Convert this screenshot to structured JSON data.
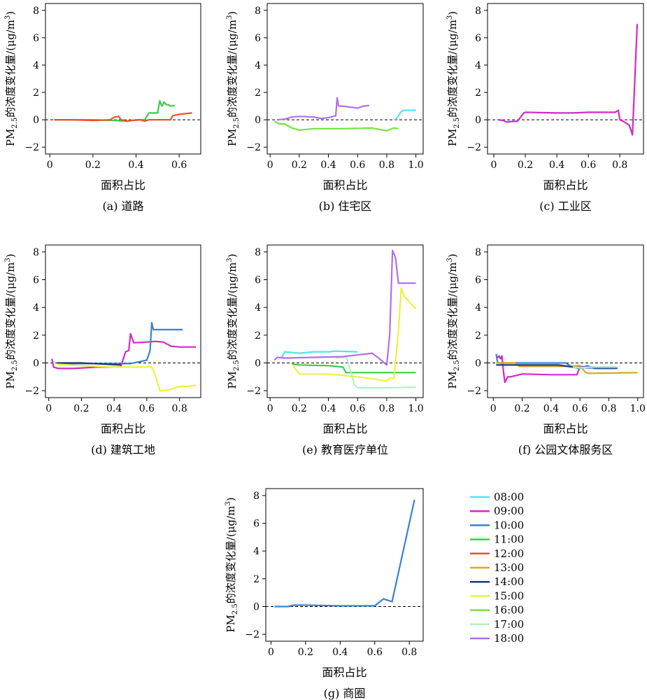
{
  "chart_data": [
    {
      "type": "line",
      "caption": "(a) 道路",
      "xlabel": "面积占比",
      "ylabel": "PM2.5的浓度变化量/(μg/m3)",
      "xlim": [
        -0.02,
        0.7
      ],
      "ylim": [
        -2.5,
        8.5
      ],
      "xticks": [
        "0",
        "0.2",
        "0.4",
        "0.6"
      ],
      "yticks": [
        "−2",
        "0",
        "2",
        "4",
        "6",
        "8"
      ],
      "reference_line": 0,
      "series": [
        {
          "name": "11:00",
          "x": [
            0.02,
            0.2,
            0.3,
            0.36,
            0.38,
            0.4,
            0.44,
            0.46,
            0.48,
            0.5,
            0.51,
            0.52,
            0.53,
            0.54,
            0.55,
            0.56,
            0.58
          ],
          "y": [
            0.0,
            0.0,
            -0.05,
            -0.1,
            -0.05,
            0.0,
            0.0,
            0.5,
            0.5,
            0.5,
            1.4,
            1.0,
            1.3,
            1.1,
            1.1,
            1.0,
            1.05
          ]
        },
        {
          "name": "12:00",
          "x": [
            0.02,
            0.1,
            0.2,
            0.28,
            0.3,
            0.32,
            0.33,
            0.36,
            0.38,
            0.42,
            0.44,
            0.46,
            0.5,
            0.56,
            0.57,
            0.6,
            0.66
          ],
          "y": [
            0.0,
            0.0,
            -0.05,
            0.0,
            0.2,
            0.25,
            0.0,
            -0.1,
            -0.05,
            0.0,
            -0.1,
            0.0,
            0.0,
            0.0,
            0.3,
            0.4,
            0.5
          ]
        }
      ]
    },
    {
      "type": "line",
      "caption": "(b) 住宅区",
      "xlabel": "面积占比",
      "ylabel": "PM2.5的浓度变化量/(μg/m3)",
      "xlim": [
        -0.02,
        1.05
      ],
      "ylim": [
        -2.5,
        8.5
      ],
      "xticks": [
        "0",
        "0.2",
        "0.4",
        "0.6",
        "0.8",
        "1.0"
      ],
      "yticks": [
        "−2",
        "0",
        "2",
        "4",
        "6",
        "8"
      ],
      "reference_line": 0,
      "series": [
        {
          "name": "08:00",
          "x": [
            0.86,
            0.9,
            0.92,
            1.0
          ],
          "y": [
            0.0,
            0.6,
            0.7,
            0.7
          ]
        },
        {
          "name": "16:00",
          "x": [
            0.03,
            0.06,
            0.1,
            0.15,
            0.2,
            0.25,
            0.3,
            0.5,
            0.7,
            0.8,
            0.85,
            0.88
          ],
          "y": [
            -0.1,
            -0.3,
            -0.3,
            -0.6,
            -0.75,
            -0.7,
            -0.65,
            -0.65,
            -0.6,
            -0.8,
            -0.6,
            -0.65
          ]
        },
        {
          "name": "18:00",
          "x": [
            0.05,
            0.1,
            0.15,
            0.2,
            0.3,
            0.35,
            0.4,
            0.45,
            0.46,
            0.47,
            0.5,
            0.6,
            0.64,
            0.68
          ],
          "y": [
            0.0,
            0.05,
            0.2,
            0.25,
            0.2,
            0.1,
            0.15,
            0.3,
            1.6,
            1.0,
            1.0,
            0.85,
            1.0,
            1.05
          ]
        }
      ]
    },
    {
      "type": "line",
      "caption": "(c) 工业区",
      "xlabel": "面积占比",
      "ylabel": "PM2.5的浓度变化量/(μg/m3)",
      "xlim": [
        -0.04,
        0.95
      ],
      "ylim": [
        -2.5,
        8.5
      ],
      "xticks": [
        "0",
        "0.2",
        "0.4",
        "0.6",
        "0.8"
      ],
      "yticks": [
        "−2",
        "0",
        "2",
        "4",
        "6",
        "8"
      ],
      "reference_line": 0,
      "series": [
        {
          "name": "09:00",
          "x": [
            0.03,
            0.06,
            0.08,
            0.15,
            0.19,
            0.2,
            0.4,
            0.5,
            0.6,
            0.77,
            0.79,
            0.8,
            0.82,
            0.86,
            0.88,
            0.91
          ],
          "y": [
            0.0,
            -0.05,
            -0.15,
            -0.1,
            0.5,
            0.55,
            0.5,
            0.5,
            0.55,
            0.55,
            0.7,
            0.0,
            -0.1,
            -0.4,
            -1.1,
            7.0
          ]
        }
      ]
    },
    {
      "type": "line",
      "caption": "(d) 建筑工地",
      "xlabel": "面积占比",
      "ylabel": "PM2.5的浓度变化量/(μg/m3)",
      "xlim": [
        -0.02,
        0.93
      ],
      "ylim": [
        -2.5,
        8.5
      ],
      "xticks": [
        "0",
        "0.2",
        "0.4",
        "0.6",
        "0.8"
      ],
      "yticks": [
        "−2",
        "0",
        "2",
        "4",
        "6",
        "8"
      ],
      "reference_line": 0,
      "series": [
        {
          "name": "09:00",
          "x": [
            0.02,
            0.03,
            0.06,
            0.15,
            0.3,
            0.44,
            0.47,
            0.49,
            0.5,
            0.52,
            0.6,
            0.65,
            0.7,
            0.75,
            0.8,
            0.9
          ],
          "y": [
            0.3,
            -0.3,
            -0.4,
            -0.4,
            -0.3,
            -0.3,
            0.8,
            0.9,
            2.1,
            1.45,
            1.5,
            1.55,
            1.5,
            1.2,
            1.15,
            1.15
          ]
        },
        {
          "name": "10:00",
          "x": [
            0.05,
            0.2,
            0.4,
            0.5,
            0.6,
            0.62,
            0.63,
            0.64,
            0.65,
            0.7,
            0.82
          ],
          "y": [
            -0.05,
            -0.05,
            -0.05,
            -0.05,
            0.2,
            0.9,
            2.9,
            2.4,
            2.4,
            2.4,
            2.4
          ]
        },
        {
          "name": "14:00",
          "x": [
            0.05,
            0.2,
            0.44
          ],
          "y": [
            0.0,
            0.0,
            -0.15
          ]
        },
        {
          "name": "15:00",
          "x": [
            0.05,
            0.2,
            0.4,
            0.6,
            0.62,
            0.64,
            0.66,
            0.68,
            0.7,
            0.75,
            0.8,
            0.85,
            0.9
          ],
          "y": [
            -0.1,
            -0.2,
            -0.3,
            -0.3,
            -0.2,
            -0.5,
            -1.2,
            -2.0,
            -2.0,
            -1.9,
            -1.7,
            -1.7,
            -1.6
          ]
        }
      ]
    },
    {
      "type": "line",
      "caption": "(e) 教育医疗单位",
      "xlabel": "面积占比",
      "ylabel": "PM2.5的浓度变化量/(μg/m3)",
      "xlim": [
        -0.02,
        1.05
      ],
      "ylim": [
        -2.5,
        8.5
      ],
      "xticks": [
        "0",
        "0.2",
        "0.4",
        "0.6",
        "0.8",
        "1.0"
      ],
      "yticks": [
        "−2",
        "0",
        "2",
        "4",
        "6",
        "8"
      ],
      "reference_line": 0,
      "series": [
        {
          "name": "08:00",
          "x": [
            0.08,
            0.1,
            0.2,
            0.3,
            0.4,
            0.45,
            0.6
          ],
          "y": [
            0.4,
            0.8,
            0.7,
            0.8,
            0.8,
            0.85,
            0.8
          ]
        },
        {
          "name": "11:00",
          "x": [
            0.15,
            0.2,
            0.4,
            0.5,
            0.52,
            0.6,
            0.8,
            1.0
          ],
          "y": [
            -0.1,
            -0.15,
            -0.2,
            -0.3,
            -0.7,
            -0.7,
            -0.7,
            -0.7
          ]
        },
        {
          "name": "15:00",
          "x": [
            0.15,
            0.2,
            0.4,
            0.6,
            0.8,
            0.82,
            0.85,
            0.88,
            0.9,
            0.92,
            1.0
          ],
          "y": [
            -0.1,
            -0.8,
            -0.8,
            -1.0,
            -1.3,
            -1.1,
            -1.1,
            2.3,
            5.4,
            4.8,
            3.9
          ]
        },
        {
          "name": "17:00",
          "x": [
            0.45,
            0.5,
            0.52,
            0.55,
            0.58,
            0.6,
            0.8,
            1.0
          ],
          "y": [
            0.35,
            0.4,
            0.5,
            -0.5,
            -1.6,
            -1.8,
            -1.8,
            -1.75
          ]
        },
        {
          "name": "18:00",
          "x": [
            0.03,
            0.05,
            0.1,
            0.3,
            0.5,
            0.7,
            0.75,
            0.8,
            0.82,
            0.84,
            0.86,
            0.88,
            1.0
          ],
          "y": [
            0.2,
            0.4,
            0.35,
            0.4,
            0.45,
            0.7,
            0.3,
            -0.15,
            2.0,
            8.1,
            7.6,
            5.75,
            5.75
          ]
        }
      ]
    },
    {
      "type": "line",
      "caption": "(f) 公园文体服务区",
      "xlabel": "面积占比",
      "ylabel": "PM2.5的浓度变化量/(μg/m3)",
      "xlim": [
        -0.04,
        1.04
      ],
      "ylim": [
        -2.5,
        8.5
      ],
      "xticks": [
        "0",
        "0.2",
        "0.4",
        "0.6",
        "0.8",
        "1.0"
      ],
      "yticks": [
        "−2",
        "0",
        "2",
        "4",
        "6",
        "8"
      ],
      "reference_line": 0,
      "series": [
        {
          "name": "09:00",
          "x": [
            0.02,
            0.04,
            0.05,
            0.06,
            0.07,
            0.08,
            0.1,
            0.12,
            0.2,
            0.4,
            0.58,
            0.6,
            0.65,
            0.85
          ],
          "y": [
            0.3,
            0.5,
            0.3,
            0.5,
            -0.6,
            -1.4,
            -1.0,
            -1.0,
            -0.8,
            -0.85,
            -0.85,
            -0.25,
            -0.3,
            -0.3
          ]
        },
        {
          "name": "10:00",
          "x": [
            0.02,
            0.03,
            0.04,
            0.2,
            0.5,
            0.55,
            0.6,
            0.65,
            0.7,
            0.86
          ],
          "y": [
            0.65,
            0.0,
            0.0,
            0.0,
            0.0,
            -0.3,
            -0.4,
            -0.2,
            -0.4,
            -0.4
          ]
        },
        {
          "name": "13:00",
          "x": [
            0.02,
            0.15,
            0.18,
            0.3,
            0.5,
            0.6,
            0.64,
            0.66,
            1.0
          ],
          "y": [
            0.0,
            0.0,
            -0.25,
            -0.25,
            -0.25,
            -0.2,
            -0.7,
            -0.75,
            -0.7
          ]
        },
        {
          "name": "14:00",
          "x": [
            0.02,
            0.2,
            0.45,
            0.55,
            0.65,
            0.86
          ],
          "y": [
            -0.15,
            -0.15,
            -0.15,
            -0.3,
            -0.35,
            -0.35
          ]
        },
        {
          "name": "17:00",
          "x": [
            0.55,
            0.6,
            0.7,
            0.86
          ],
          "y": [
            -0.3,
            -0.35,
            -0.3,
            -0.3
          ]
        }
      ]
    },
    {
      "type": "line",
      "caption": "(g) 商圈",
      "xlabel": "面积占比",
      "ylabel": "PM2.5的浓度变化量/(μg/m3)",
      "xlim": [
        -0.03,
        0.88
      ],
      "ylim": [
        -2.5,
        8.5
      ],
      "xticks": [
        "0",
        "0.2",
        "0.4",
        "0.6",
        "0.8"
      ],
      "yticks": [
        "−2",
        "0",
        "2",
        "4",
        "6",
        "8"
      ],
      "reference_line": 0,
      "series": [
        {
          "name": "10:00",
          "x": [
            0.02,
            0.1,
            0.13,
            0.2,
            0.4,
            0.55,
            0.6,
            0.65,
            0.7,
            0.83
          ],
          "y": [
            0.0,
            0.0,
            0.1,
            0.1,
            0.05,
            0.05,
            0.05,
            0.55,
            0.35,
            7.7
          ]
        }
      ]
    }
  ],
  "legend": {
    "placement": "right of panel (g)",
    "entries": [
      {
        "label": "08:00",
        "color": "#4de8e8"
      },
      {
        "label": "09:00",
        "color": "#d428c8"
      },
      {
        "label": "10:00",
        "color": "#3a82d0"
      },
      {
        "label": "11:00",
        "color": "#3ccc4c"
      },
      {
        "label": "12:00",
        "color": "#ee5224"
      },
      {
        "label": "13:00",
        "color": "#d8a820"
      },
      {
        "label": "14:00",
        "color": "#1a3a80"
      },
      {
        "label": "15:00",
        "color": "#eef040"
      },
      {
        "label": "16:00",
        "color": "#7ae040"
      },
      {
        "label": "17:00",
        "color": "#b4f0c8"
      },
      {
        "label": "18:00",
        "color": "#b070e8"
      }
    ]
  }
}
